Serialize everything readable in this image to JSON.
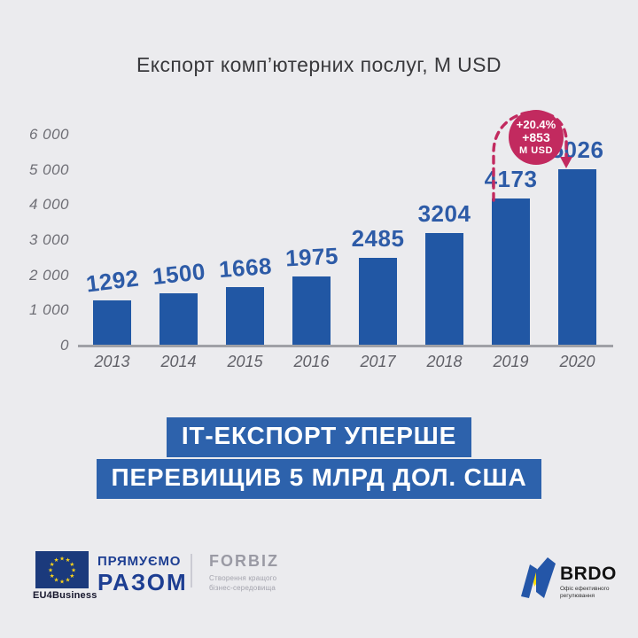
{
  "title": "Експорт комп’ютерних послуг, М USD",
  "chart_data": {
    "type": "bar",
    "title": "Експорт комп’ютерних послуг, М USD",
    "categories": [
      "2013",
      "2014",
      "2015",
      "2016",
      "2017",
      "2018",
      "2019",
      "2020"
    ],
    "values": [
      1292,
      1500,
      1668,
      1975,
      2485,
      3204,
      4173,
      5026
    ],
    "xlabel": "",
    "ylabel": "",
    "ylim": [
      0,
      6000
    ],
    "ytick_values": [
      0,
      1000,
      2000,
      3000,
      4000,
      5000,
      6000
    ],
    "ytick_labels": [
      "0",
      "1 000",
      "2 000",
      "3 000",
      "4 000",
      "5 000",
      "6 000"
    ],
    "grid": false,
    "legend_position": "none",
    "bar_color": "#2157a4",
    "value_label_color": "#2d5ba7",
    "annotation": {
      "text_lines": [
        "+20.4%",
        "+853",
        "M USD"
      ],
      "from_category": "2019",
      "to_category": "2020",
      "color": "#c22a5f"
    }
  },
  "banner": {
    "line1": "ІТ-ЕКСПОРТ УПЕРШЕ",
    "line2": "ПЕРЕВИЩИВ 5 МЛРД ДОЛ. США"
  },
  "footer": {
    "eu4business_label": "EU4Business",
    "tagline_line1": "ПРЯМУЄМО",
    "tagline_line2": "РАЗОМ",
    "forbiz_name": "FORBIZ",
    "forbiz_sub_line1": "Створення кращого",
    "forbiz_sub_line2": "бізнес-середовища",
    "brdo_name": "BRDO",
    "brdo_sub_line1": "Офіс ефективного",
    "brdo_sub_line2": "регулювання"
  },
  "colors": {
    "background": "#ebebee",
    "bar_blue": "#2157a4",
    "value_blue": "#2d5ba7",
    "banner_blue": "#2d62ac",
    "badge_pink": "#c22a5f",
    "axis_gray": "#9fa0a6",
    "eu_flag_blue": "#1b3a7c",
    "eu_star_yellow": "#ffd617",
    "brdo_blue": "#2456a8",
    "brdo_yellow": "#ffdd00"
  }
}
